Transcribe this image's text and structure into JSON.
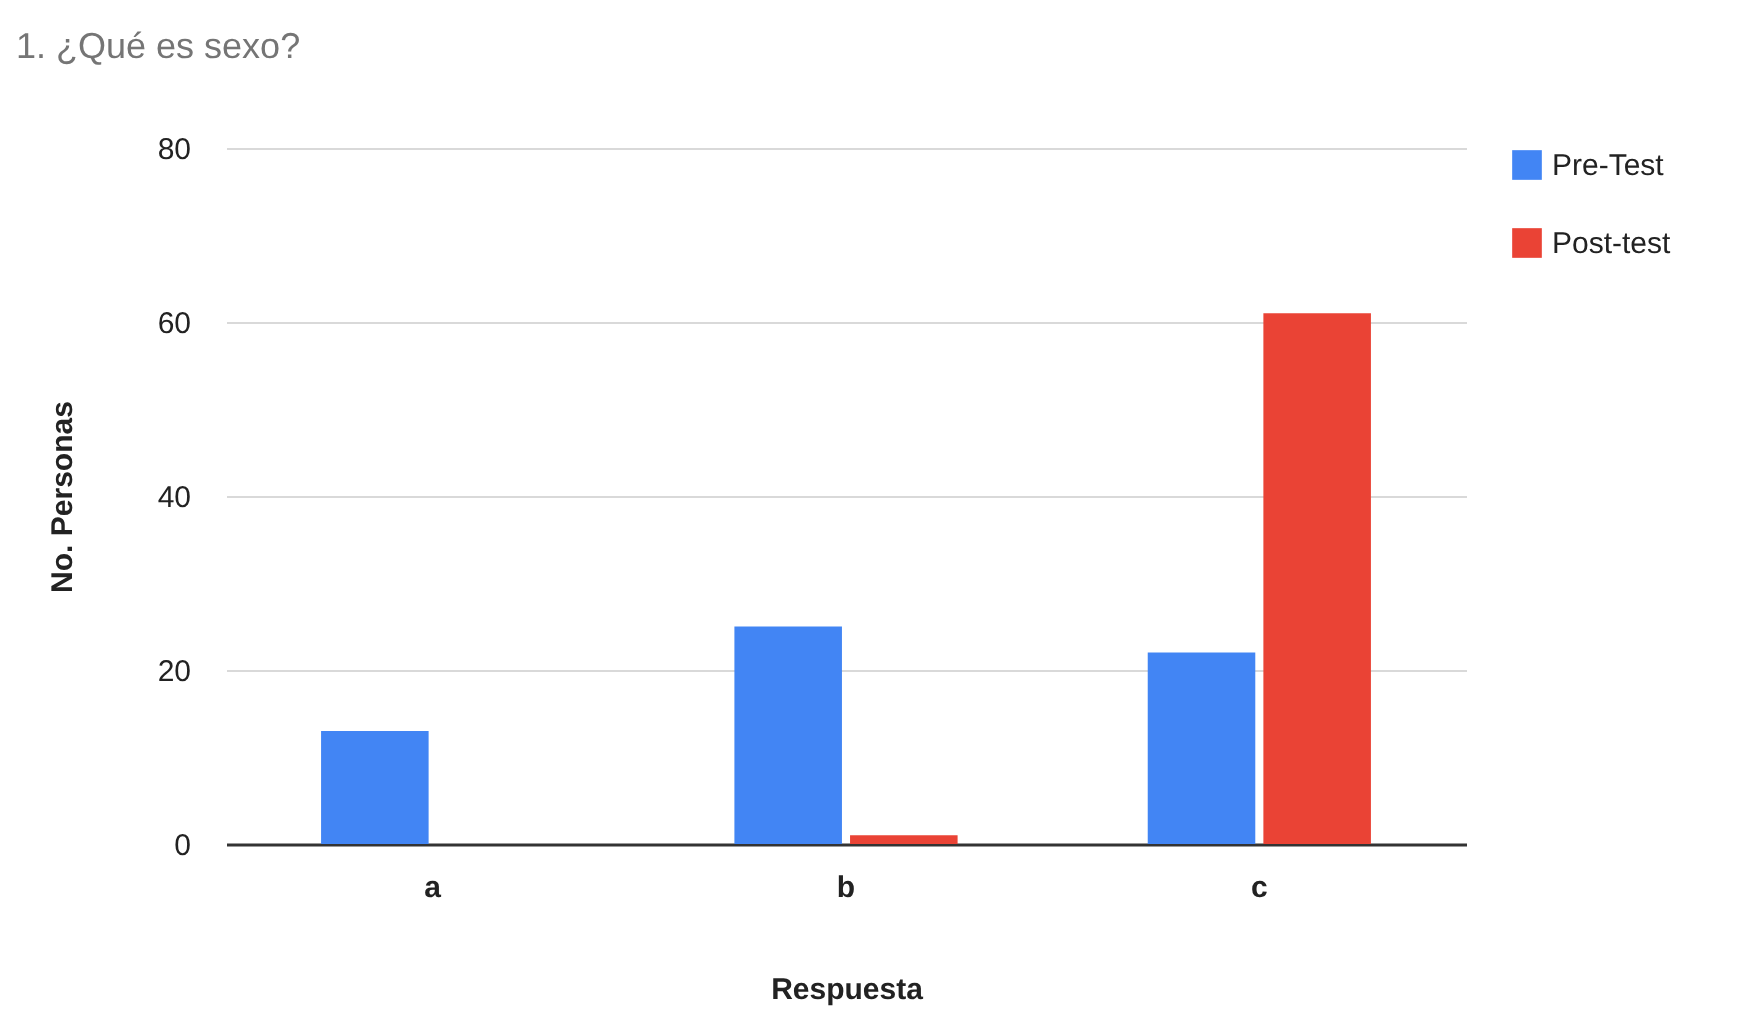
{
  "chart_data": {
    "type": "bar",
    "title": "1. ¿Qué es sexo?",
    "xlabel": "Respuesta",
    "ylabel": "No. Personas",
    "categories": [
      "a",
      "b",
      "c"
    ],
    "series": [
      {
        "name": "Pre-Test",
        "color": "#4285f4",
        "values": [
          13,
          25,
          22
        ]
      },
      {
        "name": "Post-test",
        "color": "#ea4335",
        "values": [
          0,
          1,
          61
        ]
      }
    ],
    "ylim": [
      0,
      80
    ],
    "yticks": [
      0,
      20,
      40,
      60,
      80
    ],
    "grid": "y",
    "legend": "top right"
  }
}
